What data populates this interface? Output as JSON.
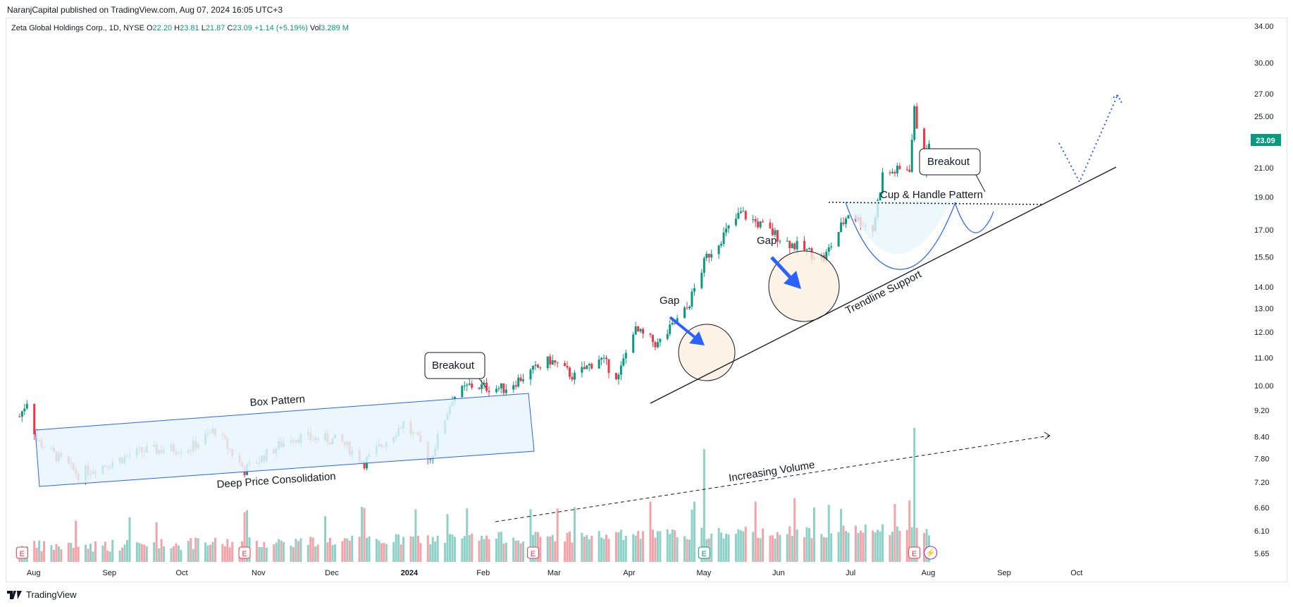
{
  "header": {
    "publisher_line": "NaranjCapital published on TradingView.com, Aug 07, 2024 16:05 UTC+3"
  },
  "legend": {
    "symbol": "Zeta Global Holdings Corp., 1D, NYSE",
    "open_label": "O",
    "open": "22.20",
    "high_label": "H",
    "high": "23.81",
    "low_label": "L",
    "low": "21.87",
    "close_label": "C",
    "close": "23.09",
    "change": "+1.14 (+5.19%)",
    "vol_label": "Vol",
    "vol": "3.289 M"
  },
  "footer": {
    "brand": "TradingView"
  },
  "colors": {
    "up": "#089981",
    "down": "#f23645",
    "up_vol": "#8ed1c6",
    "down_vol": "#f5a3a8",
    "drawing_blue": "#2962ff",
    "box_fill": "#e7f6fb",
    "circle_fill": "#fbefe0"
  },
  "chart_data": {
    "type": "candlestick",
    "scale": "log",
    "price_axis_ticks": [
      34.0,
      30.0,
      27.0,
      25.0,
      21.0,
      19.0,
      17.0,
      15.5,
      14.0,
      13.0,
      12.0,
      11.0,
      10.0,
      9.2,
      8.4,
      7.8,
      7.2,
      6.6,
      6.1,
      5.65
    ],
    "last_price": "23.09",
    "time_axis_labels": [
      "Aug",
      "Sep",
      "Oct",
      "Nov",
      "Dec",
      "2024",
      "Feb",
      "Mar",
      "Apr",
      "May",
      "Jun",
      "Jul",
      "Aug",
      "Sep",
      "Oct"
    ],
    "ohlc_anchors": [
      {
        "date": "2023-08-01",
        "close": 9.0
      },
      {
        "date": "2023-08-04",
        "close": 9.5
      },
      {
        "date": "2023-08-08",
        "close": 8.3
      },
      {
        "date": "2023-08-25",
        "close": 7.4
      },
      {
        "date": "2023-09-20",
        "close": 8.0
      },
      {
        "date": "2023-10-10",
        "close": 8.1
      },
      {
        "date": "2023-10-20",
        "close": 8.6
      },
      {
        "date": "2023-11-01",
        "close": 7.5
      },
      {
        "date": "2023-11-20",
        "close": 8.4
      },
      {
        "date": "2023-12-10",
        "close": 8.3
      },
      {
        "date": "2023-12-20",
        "close": 7.7
      },
      {
        "date": "2024-01-05",
        "close": 8.8
      },
      {
        "date": "2024-01-12",
        "close": 8.2
      },
      {
        "date": "2024-01-16",
        "close": 7.8
      },
      {
        "date": "2024-01-25",
        "close": 9.6
      },
      {
        "date": "2024-02-01",
        "close": 10.0
      },
      {
        "date": "2024-02-15",
        "close": 9.9
      },
      {
        "date": "2024-03-05",
        "close": 10.9
      },
      {
        "date": "2024-03-15",
        "close": 10.3
      },
      {
        "date": "2024-03-25",
        "close": 11.0
      },
      {
        "date": "2024-04-02",
        "close": 10.3
      },
      {
        "date": "2024-04-08",
        "close": 12.1
      },
      {
        "date": "2024-04-18",
        "close": 11.5
      },
      {
        "date": "2024-04-30",
        "close": 13.0
      },
      {
        "date": "2024-05-08",
        "close": 15.5
      },
      {
        "date": "2024-05-22",
        "close": 18.0
      },
      {
        "date": "2024-06-10",
        "close": 16.3
      },
      {
        "date": "2024-06-25",
        "close": 15.4
      },
      {
        "date": "2024-07-05",
        "close": 18.0
      },
      {
        "date": "2024-07-15",
        "close": 17.0
      },
      {
        "date": "2024-07-19",
        "close": 20.5
      },
      {
        "date": "2024-07-30",
        "close": 21.0
      },
      {
        "date": "2024-08-01",
        "close": 25.5
      },
      {
        "date": "2024-08-05",
        "close": 21.0
      },
      {
        "date": "2024-08-07",
        "close": 23.09
      }
    ],
    "volume_series_note": "volume histogram at bottom, highest bar on Aug 01 2024"
  },
  "annotations": {
    "box_pattern": "Box Pattern",
    "deep_consolidation": "Deep Price Consolidation",
    "breakout_1": "Breakout",
    "breakout_2": "Breakout",
    "gap_1": "Gap",
    "gap_2": "Gap",
    "cup_handle": "Cup & Handle Pattern",
    "trendline": "Trendline Support",
    "increasing_volume": "Increasing Volume"
  },
  "earnings_markers": [
    "E",
    "E",
    "E",
    "E",
    "E"
  ],
  "dividend_marker": "⚡"
}
